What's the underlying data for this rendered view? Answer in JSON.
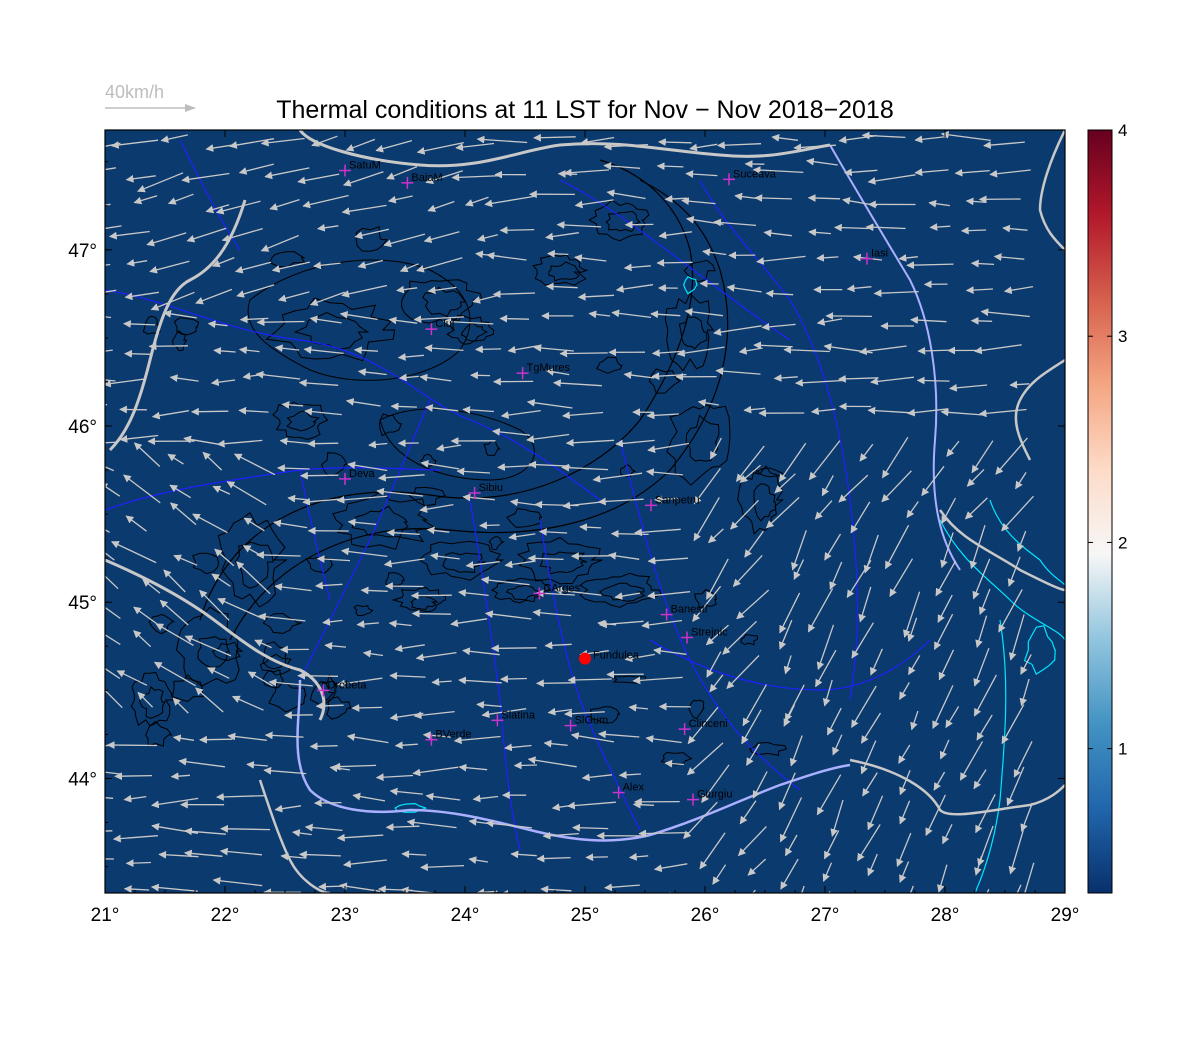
{
  "title": "Thermal conditions at 11 LST for Nov − Nov  2018−2018",
  "wind_legend": {
    "label": "40km/h"
  },
  "colors": {
    "map_background": "#0b3a6e",
    "contour": "#000000",
    "border": "#c8c8c8",
    "river": "#2020ff",
    "danube": "#aab0ff",
    "lake": "#00e5ff",
    "station_marker": "#cc33cc",
    "target_marker": "#ff0000",
    "wind_arrow": "#c8c8c8"
  },
  "axes": {
    "lon_ticks": [
      "21°",
      "22°",
      "23°",
      "24°",
      "25°",
      "26°",
      "27°",
      "28°",
      "29°"
    ],
    "lat_ticks": [
      "44°",
      "45°",
      "46°",
      "47°"
    ],
    "lon_range": [
      21,
      29
    ],
    "lat_range": [
      43.35,
      47.68
    ]
  },
  "colorbar": {
    "ticks": [
      "1",
      "2",
      "3",
      "4"
    ],
    "tick_values": [
      1,
      2,
      3,
      4
    ],
    "range": [
      0.3,
      4.0
    ],
    "colormap": [
      "#08306b",
      "#2166ac",
      "#4393c3",
      "#92c5de",
      "#f7f7f7",
      "#fddbc7",
      "#f4a582",
      "#d6604d",
      "#b2182b",
      "#67001f"
    ]
  },
  "stations": [
    {
      "name": "SatuM",
      "lon": 23.0,
      "lat": 47.45
    },
    {
      "name": "BaiaM",
      "lon": 23.52,
      "lat": 47.38
    },
    {
      "name": "Suceava",
      "lon": 26.2,
      "lat": 47.4
    },
    {
      "name": "Iasi",
      "lon": 27.35,
      "lat": 46.95
    },
    {
      "name": "Cluj",
      "lon": 23.72,
      "lat": 46.55
    },
    {
      "name": "TgMures",
      "lon": 24.48,
      "lat": 46.3
    },
    {
      "name": "Deva",
      "lon": 23.0,
      "lat": 45.7
    },
    {
      "name": "Sibiu",
      "lon": 24.08,
      "lat": 45.62
    },
    {
      "name": "Sanpetru",
      "lon": 25.55,
      "lat": 45.55
    },
    {
      "name": "CArges",
      "lon": 24.62,
      "lat": 45.05
    },
    {
      "name": "Banesti",
      "lon": 25.68,
      "lat": 44.93
    },
    {
      "name": "Strejnic",
      "lon": 25.85,
      "lat": 44.8
    },
    {
      "name": "Drobeta",
      "lon": 22.82,
      "lat": 44.5
    },
    {
      "name": "Slatina",
      "lon": 24.27,
      "lat": 44.33
    },
    {
      "name": "SlGum",
      "lon": 24.88,
      "lat": 44.3
    },
    {
      "name": "Clinceni",
      "lon": 25.83,
      "lat": 44.28
    },
    {
      "name": "BVerde",
      "lon": 23.72,
      "lat": 44.22
    },
    {
      "name": "Alex",
      "lon": 25.28,
      "lat": 43.92
    },
    {
      "name": "Giurgiu",
      "lon": 25.9,
      "lat": 43.88
    }
  ],
  "target_site": {
    "name": "Fundulea",
    "lon": 25.0,
    "lat": 44.68
  }
}
